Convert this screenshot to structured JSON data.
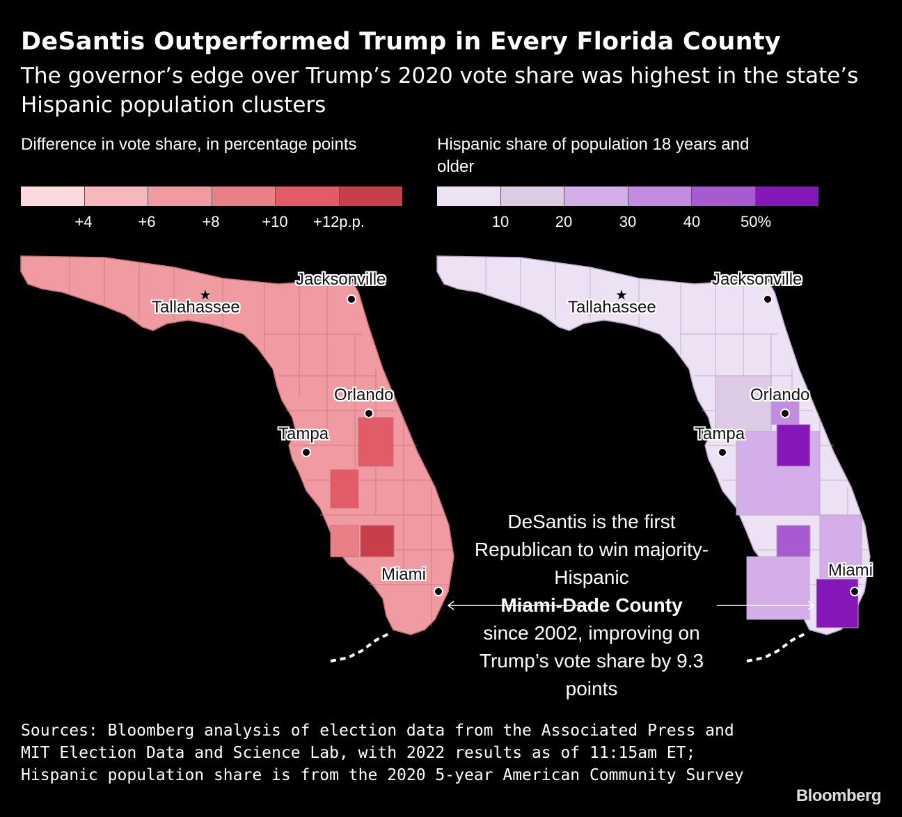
{
  "title": "DeSantis Outperformed Trump in Every Florida County",
  "subtitle": "The governor’s edge over Trump’s 2020 vote share was highest in the state’s Hispanic population clusters",
  "legend_left": {
    "title": "Difference in vote share, in percentage points",
    "colors": [
      "#fbd9dc",
      "#f6b8bd",
      "#f09ba2",
      "#ea7f88",
      "#e25c68",
      "#c63f4b"
    ],
    "ticks": [
      "+4",
      "+6",
      "+8",
      "+10",
      "+12p.p."
    ]
  },
  "legend_right": {
    "title": "Hispanic share of population 18 years and older",
    "colors": [
      "#ede1f4",
      "#ddcbe6",
      "#d4aee9",
      "#c48ce0",
      "#a85bd0",
      "#8517b8"
    ],
    "ticks": [
      "10",
      "20",
      "30",
      "40",
      "50%"
    ]
  },
  "cities": {
    "jacksonville": "Jacksonville",
    "tallahassee": "Tallahassee",
    "orlando": "Orlando",
    "tampa": "Tampa",
    "miami": "Miami"
  },
  "annotation": {
    "line1": "DeSantis is the first Republican to win majority-Hispanic",
    "bold": "Miami-Dade County",
    "line2": "since 2002, improving on Trump’s vote share by 9.3 points"
  },
  "source": "Sources: Bloomberg analysis of election data from the Associated Press and MIT Election Data and Science Lab, with 2022 results as of 11:15am ET; Hispanic population share is from the 2020 5-year American Community Survey",
  "brand": "Bloomberg"
}
